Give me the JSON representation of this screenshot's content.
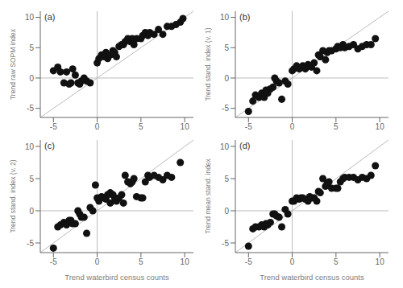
{
  "chart_data": [
    {
      "type": "scatter",
      "title": "(a)",
      "ylabel": "Trend raw SOPM index",
      "color": "#111111",
      "grid": false,
      "xlim": [
        -6.5,
        11
      ],
      "ylim": [
        -6.5,
        11
      ],
      "xticks": [
        -5,
        0,
        5,
        10
      ],
      "yticks": [
        -5,
        0,
        5,
        10
      ],
      "x": [
        -5.0,
        -4.5,
        -4.2,
        -3.8,
        -3.5,
        -3.2,
        -3.0,
        -2.8,
        -2.5,
        -2.2,
        -2.0,
        -1.8,
        -1.5,
        -1.2,
        -0.8,
        0.0,
        0.2,
        0.5,
        0.8,
        1.0,
        1.2,
        1.5,
        1.8,
        2.0,
        2.2,
        2.5,
        2.8,
        3.0,
        3.2,
        3.5,
        3.8,
        4.0,
        4.2,
        4.5,
        5.0,
        5.2,
        5.5,
        5.8,
        6.0,
        6.5,
        7.0,
        7.5,
        8.0,
        8.5,
        9.0,
        9.5,
        9.8
      ],
      "values": [
        1.2,
        1.8,
        1.0,
        -0.8,
        1.0,
        -1.0,
        -0.8,
        1.5,
        0.5,
        -0.8,
        -1.0,
        -0.5,
        0.0,
        -0.5,
        -0.8,
        2.5,
        3.2,
        3.8,
        3.5,
        4.2,
        3.2,
        3.8,
        4.5,
        4.2,
        3.5,
        5.2,
        5.5,
        5.5,
        6.0,
        6.5,
        6.0,
        6.5,
        5.5,
        6.5,
        6.5,
        7.0,
        7.5,
        7.0,
        7.5,
        7.2,
        8.0,
        7.2,
        8.5,
        8.5,
        8.8,
        9.2,
        9.8
      ]
    },
    {
      "type": "scatter",
      "title": "(b)",
      "ylabel": "Trend stand. index (v. 1)",
      "color": "#111111",
      "grid": false,
      "xlim": [
        -6.5,
        11
      ],
      "ylim": [
        -6.5,
        11
      ],
      "xticks": [
        -5,
        0,
        5,
        10
      ],
      "yticks": [
        -5,
        0,
        5,
        10
      ],
      "x": [
        -5.0,
        -4.5,
        -4.2,
        -3.8,
        -3.5,
        -3.2,
        -3.0,
        -2.8,
        -2.5,
        -2.2,
        -2.0,
        -1.8,
        -1.5,
        -1.2,
        -0.8,
        -0.5,
        0.0,
        0.2,
        0.5,
        0.8,
        1.0,
        1.2,
        1.5,
        1.8,
        2.0,
        2.2,
        2.5,
        2.8,
        3.0,
        3.2,
        3.5,
        3.8,
        4.0,
        4.2,
        4.5,
        5.0,
        5.2,
        5.5,
        5.8,
        6.0,
        6.5,
        7.0,
        7.5,
        8.0,
        8.5,
        9.0,
        9.5
      ],
      "values": [
        -5.5,
        -3.8,
        -2.8,
        -3.2,
        -2.5,
        -3.2,
        -2.0,
        -2.5,
        -1.8,
        -1.5,
        0.0,
        -0.5,
        -0.8,
        -3.5,
        -0.5,
        -1.0,
        1.2,
        1.5,
        2.0,
        1.5,
        1.8,
        2.0,
        1.5,
        2.2,
        2.0,
        1.8,
        2.5,
        1.2,
        3.8,
        3.5,
        4.5,
        3.0,
        4.2,
        4.5,
        4.5,
        4.8,
        5.2,
        5.0,
        5.5,
        5.0,
        5.2,
        5.5,
        4.8,
        5.2,
        5.5,
        5.5,
        6.5
      ]
    },
    {
      "type": "scatter",
      "title": "(c)",
      "ylabel": "Trend stand. index (v. 2)",
      "xlabel": "Trend waterbird census counts",
      "color": "#111111",
      "grid": false,
      "xlim": [
        -6.5,
        11
      ],
      "ylim": [
        -6.5,
        11
      ],
      "xticks": [
        -5,
        0,
        5,
        10
      ],
      "yticks": [
        -5,
        0,
        5,
        10
      ],
      "x": [
        -5.0,
        -4.5,
        -4.2,
        -3.8,
        -3.5,
        -3.2,
        -3.0,
        -2.8,
        -2.5,
        -2.2,
        -2.0,
        -1.8,
        -1.5,
        -1.2,
        -0.8,
        -0.5,
        -0.2,
        0.0,
        0.2,
        0.5,
        0.8,
        1.0,
        1.2,
        1.5,
        1.5,
        1.8,
        2.0,
        2.2,
        2.5,
        2.8,
        3.0,
        3.2,
        3.5,
        3.8,
        4.0,
        4.2,
        4.5,
        5.0,
        5.2,
        5.5,
        5.8,
        6.0,
        6.5,
        7.0,
        7.5,
        8.0,
        8.5,
        9.5
      ],
      "values": [
        -5.8,
        -2.5,
        -2.2,
        -1.8,
        -2.2,
        -1.5,
        -1.5,
        -2.0,
        -2.0,
        0.0,
        -0.5,
        -1.0,
        -1.0,
        -3.5,
        0.5,
        0.0,
        4.0,
        2.0,
        1.5,
        2.2,
        2.0,
        1.8,
        2.5,
        1.2,
        2.8,
        2.5,
        2.0,
        1.5,
        2.0,
        2.5,
        1.2,
        5.5,
        4.5,
        4.2,
        4.5,
        5.0,
        2.2,
        2.0,
        2.0,
        4.5,
        5.5,
        5.2,
        5.5,
        5.2,
        4.8,
        5.5,
        5.2,
        7.5
      ]
    },
    {
      "type": "scatter",
      "title": "(d)",
      "ylabel": "Trend mean stand. index",
      "xlabel": "Trend waterbird census counts",
      "color": "#111111",
      "grid": false,
      "xlim": [
        -6.5,
        11
      ],
      "ylim": [
        -6.5,
        11
      ],
      "xticks": [
        -5,
        0,
        5,
        10
      ],
      "yticks": [
        -5,
        0,
        5,
        10
      ],
      "x": [
        -5.0,
        -4.5,
        -4.2,
        -3.8,
        -3.5,
        -3.2,
        -3.0,
        -2.8,
        -2.5,
        -2.2,
        -2.0,
        -1.8,
        -1.5,
        -1.2,
        -0.8,
        -0.5,
        0.0,
        0.2,
        0.5,
        0.8,
        1.0,
        1.2,
        1.5,
        1.8,
        2.0,
        2.2,
        2.5,
        2.8,
        3.0,
        3.2,
        3.5,
        3.8,
        4.0,
        4.2,
        4.5,
        5.0,
        5.2,
        5.5,
        5.8,
        6.0,
        6.5,
        7.0,
        7.5,
        8.0,
        8.5,
        9.0,
        9.5
      ],
      "values": [
        -5.5,
        -2.8,
        -2.5,
        -2.5,
        -2.2,
        -2.5,
        -2.0,
        -2.2,
        -1.8,
        -0.5,
        -0.5,
        -0.8,
        -1.0,
        -2.5,
        0.2,
        -0.5,
        1.5,
        1.5,
        2.0,
        1.8,
        2.0,
        2.0,
        1.8,
        1.5,
        2.2,
        2.0,
        2.0,
        1.5,
        3.0,
        2.8,
        5.0,
        3.8,
        4.2,
        4.5,
        3.5,
        3.5,
        3.5,
        4.5,
        5.0,
        5.2,
        5.2,
        5.2,
        4.8,
        5.2,
        5.0,
        5.5,
        7.0
      ]
    }
  ]
}
